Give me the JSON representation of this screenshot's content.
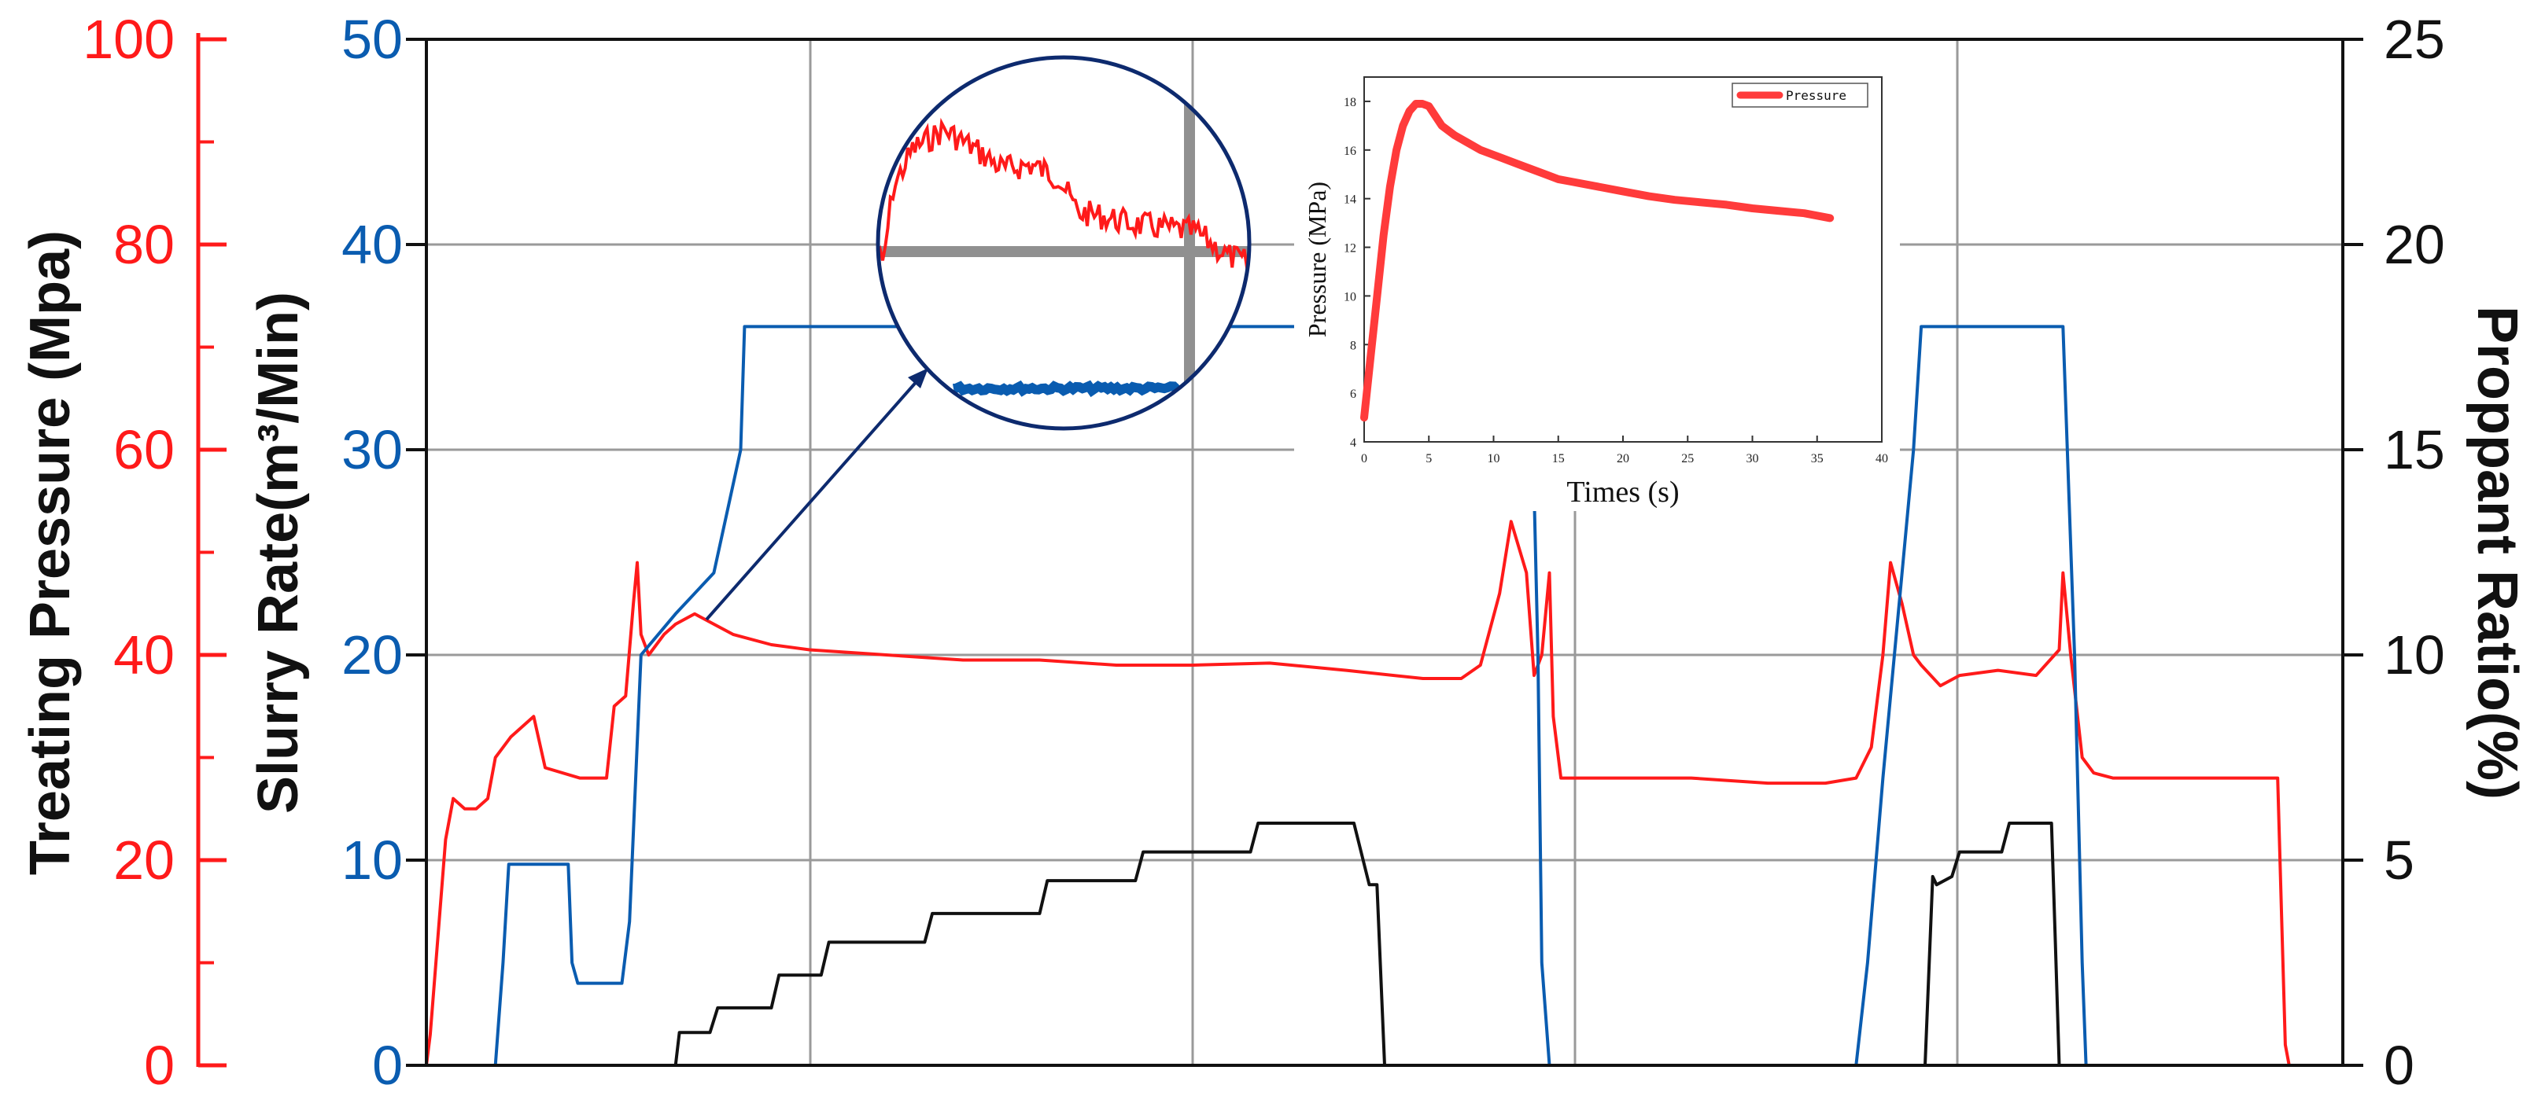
{
  "colors": {
    "pressure": "#ff1a1a",
    "slurry": "#0a5cb0",
    "proppant": "#111111",
    "grid": "#9a9a9a",
    "magnifier_ring": "#0d2a6e",
    "inset_line": "#ff3b3b"
  },
  "chart_data": [
    {
      "type": "line",
      "title": "",
      "x_range": [
        0,
        100
      ],
      "grid": true,
      "axes": {
        "left_outer": {
          "label": "Treating Pressure (Mpa)",
          "range": [
            0,
            100
          ],
          "ticks": [
            "0",
            "20",
            "40",
            "60",
            "80",
            "100"
          ],
          "color": "#ff1a1a"
        },
        "left_inner": {
          "label": "Slurry Rate(m³/Min)",
          "range": [
            0,
            50
          ],
          "ticks": [
            "0",
            "10",
            "20",
            "30",
            "40",
            "50"
          ],
          "color": "#0a5cb0"
        },
        "right": {
          "label": "Proppant Ratio(%)",
          "range": [
            0,
            25
          ],
          "ticks": [
            "0",
            "5",
            "10",
            "15",
            "20",
            "25"
          ],
          "color": "#111111"
        }
      },
      "series": [
        {
          "axis": "left_outer",
          "color": "#ff1a1a",
          "x": [
            0,
            0.2,
            1,
            1.4,
            2,
            2.6,
            3.2,
            3.6,
            4.4,
            5.6,
            6.2,
            8,
            9.4,
            9.8,
            10.4,
            10.8,
            11,
            11.2,
            11.6,
            12.4,
            13,
            14,
            15,
            16,
            18,
            20,
            24,
            28,
            32,
            36,
            40,
            44,
            48,
            52,
            54,
            55,
            56,
            56.6,
            57.4,
            57.8,
            58.2,
            58.6,
            58.8,
            59.2,
            59.6,
            60,
            62,
            66,
            70,
            73,
            74.6,
            75.4,
            76,
            76.4,
            77,
            77.6,
            78,
            79,
            80,
            82,
            84,
            85.2,
            85.4,
            85.8,
            86.4,
            87,
            88,
            90,
            94,
            96.6,
            96.8,
            97,
            97.2
          ],
          "y": [
            0,
            3,
            22,
            26,
            25,
            25,
            26,
            30,
            32,
            34,
            29,
            28,
            28,
            35,
            36,
            45,
            49,
            42,
            40,
            42,
            43,
            44,
            43,
            42,
            41,
            40.5,
            40,
            39.5,
            39.5,
            39,
            39,
            39.2,
            38.5,
            37.7,
            37.7,
            39,
            46,
            53,
            48,
            38,
            40,
            48,
            34,
            28,
            28,
            28,
            28,
            28,
            27.5,
            27.5,
            28,
            31,
            40,
            49,
            45,
            40,
            39,
            37,
            38,
            38.5,
            38,
            40.5,
            48,
            40,
            30,
            28.5,
            28,
            28,
            28,
            28,
            15,
            2,
            0
          ]
        },
        {
          "axis": "left_inner",
          "color": "#0a5cb0",
          "x": [
            0,
            0.8,
            3.6,
            4,
            4.3,
            4.6,
            7.4,
            7.6,
            7.9,
            8.1,
            10.2,
            10.6,
            11.2,
            13,
            15,
            16.4,
            16.6,
            17,
            25,
            35,
            45,
            55,
            56.6,
            57.6,
            58,
            58.2,
            58.6,
            58.8,
            59.2,
            66,
            74.6,
            75.2,
            76,
            77.2,
            77.6,
            78,
            79,
            80,
            85.4,
            86,
            86.4,
            86.6,
            90,
            97.2
          ],
          "y": [
            0,
            0,
            0,
            5,
            9.8,
            9.8,
            9.8,
            5,
            4,
            4,
            4,
            7,
            20,
            22,
            24,
            30,
            36,
            36,
            36,
            36,
            36,
            36,
            36,
            36,
            20,
            5,
            0,
            0,
            0,
            0,
            0,
            5,
            14,
            26,
            30,
            36,
            36,
            36,
            36,
            20,
            5,
            0,
            0,
            0
          ]
        },
        {
          "axis": "right",
          "color": "#111111",
          "x": [
            0,
            10,
            13,
            13.2,
            14.8,
            15.2,
            18,
            18.4,
            20.6,
            21,
            26,
            26.4,
            32,
            32.4,
            37,
            37.4,
            43,
            43.4,
            48,
            48.4,
            49.2,
            49.6,
            50,
            50.2,
            51,
            60,
            70,
            76,
            78.2,
            78.6,
            78.8,
            79.6,
            80,
            82.2,
            82.6,
            84.4,
            84.8,
            85,
            85.2,
            85.6,
            86,
            90,
            97.2
          ],
          "y": [
            0,
            0,
            0,
            0.8,
            0.8,
            1.4,
            1.4,
            2.2,
            2.2,
            3,
            3,
            3.7,
            3.7,
            4.5,
            4.5,
            5.2,
            5.2,
            5.9,
            5.9,
            5.9,
            4.4,
            4.4,
            0,
            0,
            0,
            0,
            0,
            0,
            0,
            4.6,
            4.4,
            4.6,
            5.2,
            5.2,
            5.9,
            5.9,
            5.9,
            3,
            0,
            0,
            0,
            0,
            0
          ]
        }
      ]
    },
    {
      "type": "line",
      "title": "",
      "xlabel": "Times (s)",
      "ylabel": "Pressure (MPa)",
      "xlim": [
        0,
        40
      ],
      "ylim": [
        4,
        19
      ],
      "x_ticks": [
        "0",
        "5",
        "10",
        "15",
        "20",
        "25",
        "30",
        "35",
        "40"
      ],
      "y_ticks": [
        "4",
        "6",
        "8",
        "10",
        "12",
        "14",
        "16",
        "18"
      ],
      "legend": "top-right",
      "series": [
        {
          "name": "Pressure",
          "color": "#ff3b3b",
          "x": [
            0,
            0.5,
            1,
            1.5,
            2,
            2.5,
            3,
            3.5,
            4,
            4.5,
            5,
            5.5,
            6,
            7,
            8,
            9,
            10,
            12,
            14,
            15,
            16,
            18,
            20,
            22,
            24,
            26,
            28,
            30,
            32,
            34,
            36
          ],
          "y": [
            5,
            7.5,
            10,
            12.5,
            14.5,
            16,
            17,
            17.6,
            17.9,
            17.9,
            17.8,
            17.4,
            17,
            16.6,
            16.3,
            16,
            15.8,
            15.4,
            15,
            14.8,
            14.7,
            14.5,
            14.3,
            14.1,
            13.95,
            13.85,
            13.75,
            13.6,
            13.5,
            13.4,
            13.2
          ]
        }
      ]
    }
  ]
}
